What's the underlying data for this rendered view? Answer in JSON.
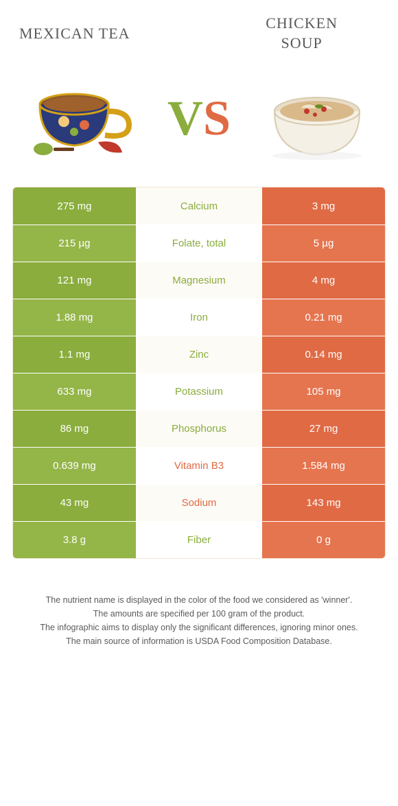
{
  "colors": {
    "left_food": "#8aad3d",
    "right_food": "#e06a44",
    "left_food_alt": "#94b548",
    "right_food_alt": "#e5754f",
    "mid_bg": "#fdfbf6",
    "text": "#5a5a5a"
  },
  "title_left": "Mexican tea",
  "title_right_line1": "Chicken",
  "title_right_line2": "soup",
  "vs_v": "V",
  "vs_s": "S",
  "rows": [
    {
      "left": "275 mg",
      "label": "Calcium",
      "right": "3 mg",
      "winner": "left"
    },
    {
      "left": "215 µg",
      "label": "Folate, total",
      "right": "5 µg",
      "winner": "left"
    },
    {
      "left": "121 mg",
      "label": "Magnesium",
      "right": "4 mg",
      "winner": "left"
    },
    {
      "left": "1.88 mg",
      "label": "Iron",
      "right": "0.21 mg",
      "winner": "left"
    },
    {
      "left": "1.1 mg",
      "label": "Zinc",
      "right": "0.14 mg",
      "winner": "left"
    },
    {
      "left": "633 mg",
      "label": "Potassium",
      "right": "105 mg",
      "winner": "left"
    },
    {
      "left": "86 mg",
      "label": "Phosphorus",
      "right": "27 mg",
      "winner": "left"
    },
    {
      "left": "0.639 mg",
      "label": "Vitamin B3",
      "right": "1.584 mg",
      "winner": "right"
    },
    {
      "left": "43 mg",
      "label": "Sodium",
      "right": "143 mg",
      "winner": "right"
    },
    {
      "left": "3.8 g",
      "label": "Fiber",
      "right": "0 g",
      "winner": "left"
    }
  ],
  "notes": {
    "line1": "The nutrient name is displayed in the color of the food we considered as 'winner'.",
    "line2": "The amounts are specified per 100 gram of the product.",
    "line3": "The infographic aims to display only the significant differences, ignoring minor ones.",
    "line4": "The main source of information is USDA Food Composition Database."
  }
}
